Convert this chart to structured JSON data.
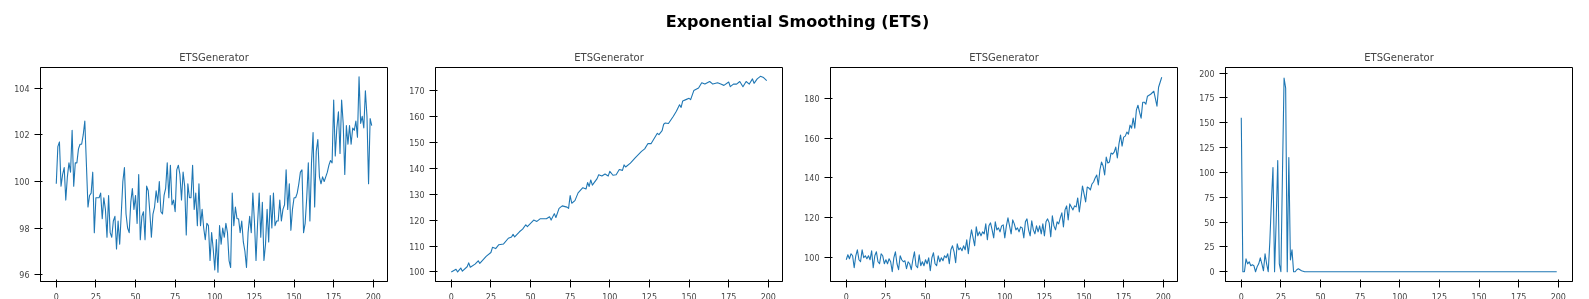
{
  "chart_data": [
    {
      "type": "other",
      "title": "Exponential Smoothing (ETS)"
    },
    {
      "type": "line",
      "title": "ETSGenerator",
      "xlim": [
        -9.95,
        208.95
      ],
      "ylim": [
        95.7,
        104.9
      ],
      "xticks": [
        0,
        25,
        50,
        75,
        100,
        125,
        150,
        175,
        200
      ],
      "yticks": [
        96,
        98,
        100,
        102,
        104
      ],
      "x": [
        0,
        1,
        2,
        3,
        4,
        5,
        6,
        7,
        8,
        9,
        10,
        11,
        12,
        13,
        14,
        15,
        16,
        17,
        18,
        20,
        21,
        22,
        23,
        24,
        25,
        27,
        28,
        29,
        30,
        31,
        32,
        33,
        34,
        35,
        36,
        37,
        38,
        39,
        40,
        41,
        42,
        43,
        44,
        45,
        46,
        47,
        48,
        49,
        50,
        51,
        52,
        53,
        54,
        55,
        56,
        57,
        58,
        59,
        60,
        61,
        62,
        63,
        64,
        65,
        66,
        67,
        68,
        69,
        70,
        71,
        72,
        73,
        74,
        75,
        76,
        77,
        78,
        79,
        80,
        81,
        82,
        83,
        84,
        85,
        86,
        87,
        88,
        89,
        90,
        91,
        92,
        93,
        94,
        95,
        96,
        97,
        98,
        99,
        100,
        101,
        102,
        103,
        104,
        105,
        106,
        107,
        108,
        109,
        110,
        111,
        112,
        113,
        114,
        115,
        116,
        117,
        118,
        119,
        120,
        121,
        122,
        123,
        124,
        125,
        126,
        127,
        128,
        129,
        130,
        131,
        132,
        133,
        134,
        135,
        136,
        137,
        138,
        139,
        140,
        141,
        142,
        143,
        144,
        145,
        146,
        147,
        148,
        149,
        150,
        151,
        152,
        153,
        154,
        155,
        156,
        157,
        158,
        159,
        160,
        161,
        162,
        163,
        164,
        165,
        166,
        167,
        168,
        169,
        170,
        171,
        172,
        173,
        174,
        175,
        176,
        177,
        178,
        179,
        180,
        181,
        182,
        183,
        184,
        185,
        186,
        187,
        188,
        189,
        190,
        191,
        192,
        193,
        194,
        195,
        196,
        197,
        198,
        199
      ],
      "series": [
        {
          "color": "#1f77b4",
          "values": [
            99.9,
            101.5,
            101.7,
            99.8,
            100.3,
            100.6,
            99.2,
            100.2,
            100.8,
            100.4,
            102.2,
            99.8,
            100.8,
            100.8,
            101.4,
            101.6,
            101.6,
            102.0,
            102.6,
            98.9,
            99.4,
            99.5,
            100.4,
            97.8,
            99.3,
            99.3,
            99.5,
            98.4,
            99.3,
            98.8,
            97.6,
            99.4,
            97.8,
            97.6,
            98.3,
            98.5,
            97.1,
            98.3,
            97.3,
            98.6,
            100.0,
            100.6,
            98.6,
            98.0,
            97.8,
            99.1,
            99.7,
            98.8,
            99.4,
            98.2,
            100.3,
            97.5,
            98.5,
            98.7,
            97.5,
            99.8,
            99.6,
            98.7,
            97.6,
            98.6,
            98.9,
            99.6,
            99.1,
            100.0,
            98.7,
            98.6,
            99.4,
            99.7,
            100.8,
            99.3,
            100.7,
            99.0,
            99.2,
            98.7,
            100.5,
            100.7,
            100.3,
            99.2,
            100.4,
            99.8,
            97.7,
            99.9,
            99.3,
            99.3,
            100.7,
            98.8,
            99.5,
            98.1,
            99.9,
            98.1,
            98.8,
            98.0,
            97.5,
            98.2,
            98.1,
            96.6,
            97.8,
            97.1,
            96.2,
            97.5,
            96.1,
            98.1,
            97.3,
            98.0,
            97.6,
            98.2,
            97.8,
            96.6,
            96.3,
            99.5,
            98.1,
            98.9,
            98.4,
            98.4,
            97.8,
            98.3,
            97.4,
            97.0,
            96.3,
            97.8,
            98.5,
            97.8,
            99.5,
            98.3,
            96.6,
            98.2,
            99.5,
            97.6,
            99.1,
            96.6,
            97.3,
            98.8,
            97.4,
            99.4,
            98.0,
            99.5,
            98.1,
            98.3,
            98.3,
            99.2,
            98.3,
            98.8,
            99.0,
            100.5,
            98.8,
            99.9,
            97.9,
            98.8,
            99.3,
            99.3,
            99.5,
            99.9,
            100.4,
            100.5,
            97.8,
            98.2,
            99.3,
            100.8,
            98.3,
            100.8,
            102.1,
            98.9,
            101.3,
            101.8,
            100.2,
            99.9,
            100.2,
            100.0,
            100.2,
            100.4,
            100.7,
            100.9,
            100.8,
            103.5,
            101.1,
            102.3,
            103.0,
            101.2,
            103.5,
            102.5,
            100.3,
            102.4,
            101.6,
            102.4,
            101.6,
            102.3,
            102.2,
            102.6,
            101.9,
            104.5,
            102.5,
            102.8,
            102.3,
            103.9,
            102.8,
            99.9,
            102.7,
            102.4
          ]
        }
      ]
    },
    {
      "type": "line",
      "title": "ETSGenerator",
      "xlim": [
        -9.95,
        208.95
      ],
      "ylim": [
        96.3,
        178.9
      ],
      "xticks": [
        0,
        25,
        50,
        75,
        100,
        125,
        150,
        175,
        200
      ],
      "yticks": [
        100,
        110,
        120,
        130,
        140,
        150,
        160,
        170
      ],
      "x": [
        0,
        3,
        4,
        6,
        7,
        10,
        11,
        12,
        15,
        17,
        18,
        22,
        25,
        26,
        28,
        30,
        33,
        36,
        38,
        39,
        40,
        43,
        45,
        47,
        48,
        52,
        54,
        56,
        60,
        62,
        63,
        65,
        66,
        68,
        70,
        73,
        74,
        75,
        76,
        78,
        80,
        83,
        85,
        86,
        87,
        88,
        89,
        92,
        93,
        95,
        97,
        99,
        100,
        102,
        104,
        106,
        108,
        109,
        110,
        113,
        116,
        120,
        122,
        124,
        126,
        130,
        131,
        133,
        134,
        135,
        137,
        140,
        142,
        144,
        145,
        146,
        148,
        150,
        151,
        153,
        156,
        158,
        160,
        163,
        165,
        168,
        170,
        172,
        175,
        176,
        178,
        180,
        182,
        184,
        186,
        188,
        190,
        191,
        193,
        195,
        197,
        199
      ],
      "series": [
        {
          "color": "#1f77b4",
          "values": [
            100,
            101,
            100,
            101.5,
            100.3,
            102,
            103.5,
            101.8,
            103,
            104.3,
            103.3,
            106,
            107.5,
            109.5,
            109,
            110.5,
            110.8,
            113,
            113.5,
            114.5,
            113.5,
            115.5,
            116.5,
            118.2,
            117.5,
            120,
            119.5,
            120.5,
            120.5,
            121.3,
            120,
            122.5,
            121,
            124.5,
            125.5,
            125,
            124.5,
            129.5,
            126.5,
            127.5,
            130.5,
            132.5,
            132,
            134.5,
            133,
            135.5,
            133.5,
            136,
            137.5,
            137,
            137.8,
            137,
            138.8,
            137.3,
            137.5,
            139.5,
            139.2,
            141.3,
            140.5,
            142,
            144,
            146.5,
            147.5,
            149.5,
            149.5,
            153.5,
            153,
            154.5,
            157,
            157.5,
            157.3,
            160,
            162,
            164.5,
            163.5,
            166,
            166.5,
            167,
            166.5,
            170,
            171,
            173,
            172.5,
            173.5,
            172.5,
            173,
            172.5,
            172,
            173.3,
            171.5,
            172.5,
            172.5,
            173.5,
            171.5,
            173.5,
            172.5,
            174.5,
            172.8,
            174.5,
            175.5,
            175,
            173.8
          ]
        }
      ]
    },
    {
      "type": "line",
      "title": "ETSGenerator",
      "xlim": [
        -9.95,
        208.95
      ],
      "ylim": [
        88.1,
        195.4
      ],
      "xticks": [
        0,
        25,
        50,
        75,
        100,
        125,
        150,
        175,
        200
      ],
      "yticks": [
        100,
        120,
        140,
        160,
        180
      ],
      "x": [
        0,
        1,
        2,
        3,
        4,
        5,
        6,
        7,
        8,
        9,
        10,
        11,
        12,
        13,
        14,
        15,
        16,
        17,
        18,
        19,
        20,
        21,
        22,
        23,
        24,
        25,
        26,
        27,
        28,
        29,
        30,
        31,
        32,
        33,
        34,
        35,
        36,
        37,
        38,
        39,
        40,
        41,
        42,
        43,
        44,
        45,
        46,
        47,
        48,
        49,
        50,
        51,
        52,
        53,
        54,
        55,
        56,
        57,
        58,
        59,
        60,
        61,
        62,
        63,
        64,
        65,
        66,
        67,
        68,
        69,
        70,
        71,
        72,
        73,
        74,
        75,
        76,
        77,
        78,
        79,
        80,
        81,
        82,
        83,
        84,
        85,
        86,
        87,
        88,
        89,
        90,
        91,
        92,
        93,
        94,
        95,
        96,
        97,
        98,
        99,
        100,
        101,
        102,
        103,
        104,
        105,
        106,
        107,
        108,
        109,
        110,
        111,
        112,
        113,
        114,
        115,
        116,
        117,
        118,
        119,
        120,
        121,
        122,
        123,
        124,
        125,
        126,
        127,
        128,
        129,
        130,
        131,
        132,
        133,
        134,
        135,
        136,
        137,
        138,
        139,
        140,
        141,
        142,
        143,
        144,
        145,
        146,
        147,
        148,
        149,
        150,
        151,
        152,
        153,
        154,
        155,
        156,
        157,
        158,
        159,
        160,
        161,
        162,
        163,
        164,
        165,
        166,
        167,
        168,
        169,
        170,
        171,
        172,
        173,
        174,
        175,
        176,
        177,
        178,
        179,
        180,
        181,
        182,
        183,
        184,
        185,
        186,
        187,
        188,
        189,
        190,
        192,
        194,
        196,
        197,
        199
      ],
      "series": [
        {
          "color": "#1f77b4",
          "values": [
            99,
            101.5,
            99.5,
            102,
            101,
            95,
            101,
            104,
            99,
            98,
            104,
            100,
            101,
            99.5,
            101,
            99,
            103.5,
            95,
            101,
            103,
            98,
            97,
            102,
            101,
            97,
            99,
            97,
            99.5,
            98,
            93,
            100,
            103,
            97,
            94,
            101,
            99,
            98,
            98.5,
            94.5,
            98,
            97,
            94,
            99,
            103,
            96,
            95,
            101.5,
            96,
            98,
            96,
            99,
            97,
            100,
            93.5,
            100,
            102.5,
            97,
            96,
            101,
            98,
            100,
            98.5,
            101,
            100,
            102,
            97,
            104,
            106,
            103,
            97.5,
            107,
            104,
            105,
            103.5,
            106,
            104,
            109,
            102,
            109,
            114,
            110,
            106,
            115.5,
            111,
            113,
            111,
            113,
            112,
            117,
            109,
            116,
            117.5,
            114,
            110,
            118,
            114,
            115,
            113,
            116,
            116.5,
            110,
            116,
            120,
            116,
            112,
            119,
            117,
            114,
            115,
            113,
            115.5,
            115,
            110,
            118,
            119.5,
            114,
            111,
            118.5,
            114,
            112,
            116,
            113,
            116,
            112,
            117,
            111,
            118,
            119.5,
            117.5,
            110.5,
            121,
            116,
            114,
            118,
            117,
            120,
            122.5,
            115.5,
            124,
            126,
            119,
            127,
            125.5,
            124,
            126,
            125.5,
            130,
            123,
            129,
            136,
            132,
            128,
            135.5,
            135,
            134,
            137,
            138,
            140,
            141.5,
            136.5,
            144,
            148,
            146,
            141.5,
            150.5,
            147.5,
            148,
            152.5,
            152,
            153,
            155.5,
            150,
            157,
            161.5,
            156,
            160.5,
            161,
            163,
            162,
            166.5,
            165,
            170,
            165,
            174,
            176.5,
            173,
            170,
            178,
            178,
            177,
            181,
            182,
            183.5,
            176,
            185.5,
            190.5
          ]
        }
      ]
    },
    {
      "type": "line",
      "title": "ETSGenerator",
      "xlim": [
        -9.95,
        208.95
      ],
      "ylim": [
        -9.8,
        205.6
      ],
      "xticks": [
        0,
        25,
        50,
        75,
        100,
        125,
        150,
        175,
        200
      ],
      "yticks": [
        0,
        25,
        50,
        75,
        100,
        125,
        150,
        175,
        200
      ],
      "x": [
        0,
        1,
        2,
        3,
        4,
        5,
        6,
        7,
        8,
        9,
        10,
        11,
        12,
        13,
        14,
        15,
        16,
        17,
        18,
        19,
        20,
        21,
        22,
        23,
        24,
        25,
        26,
        27,
        28,
        29,
        30,
        31,
        32,
        33,
        34,
        35,
        36,
        37,
        38,
        40,
        45,
        199
      ],
      "series": [
        {
          "color": "#1f77b4",
          "values": [
            155,
            0,
            0,
            13,
            8,
            10,
            6,
            7,
            6,
            0,
            5,
            8,
            14,
            8,
            1,
            18,
            8,
            0,
            30,
            70,
            105,
            0,
            50,
            112,
            8,
            0,
            100,
            195,
            185,
            0,
            115,
            12,
            22,
            0,
            0,
            2,
            3,
            2,
            1,
            0,
            0,
            0
          ]
        }
      ]
    }
  ]
}
